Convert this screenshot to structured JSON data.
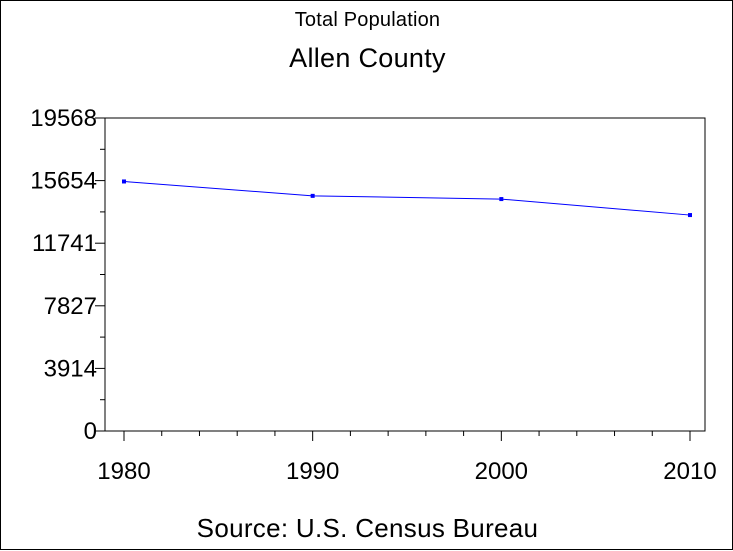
{
  "chart_data": {
    "type": "line",
    "title": "Total Population",
    "subtitle": "Allen County",
    "footnote": "Source: U.S. Census Bureau",
    "x": [
      1980,
      1990,
      2000,
      2010
    ],
    "series": [
      {
        "values": [
          15600,
          14700,
          14500,
          13500
        ]
      }
    ],
    "x_ticks": [
      "1980",
      "1990",
      "2000",
      "2010"
    ],
    "y_ticks": [
      "0",
      "3914",
      "7827",
      "11741",
      "15654",
      "19568"
    ],
    "xlim": [
      1980,
      2010
    ],
    "ylim": [
      0,
      19568
    ],
    "grid": false,
    "colors": {
      "line": "#0000ff",
      "axis": "#000000"
    }
  }
}
